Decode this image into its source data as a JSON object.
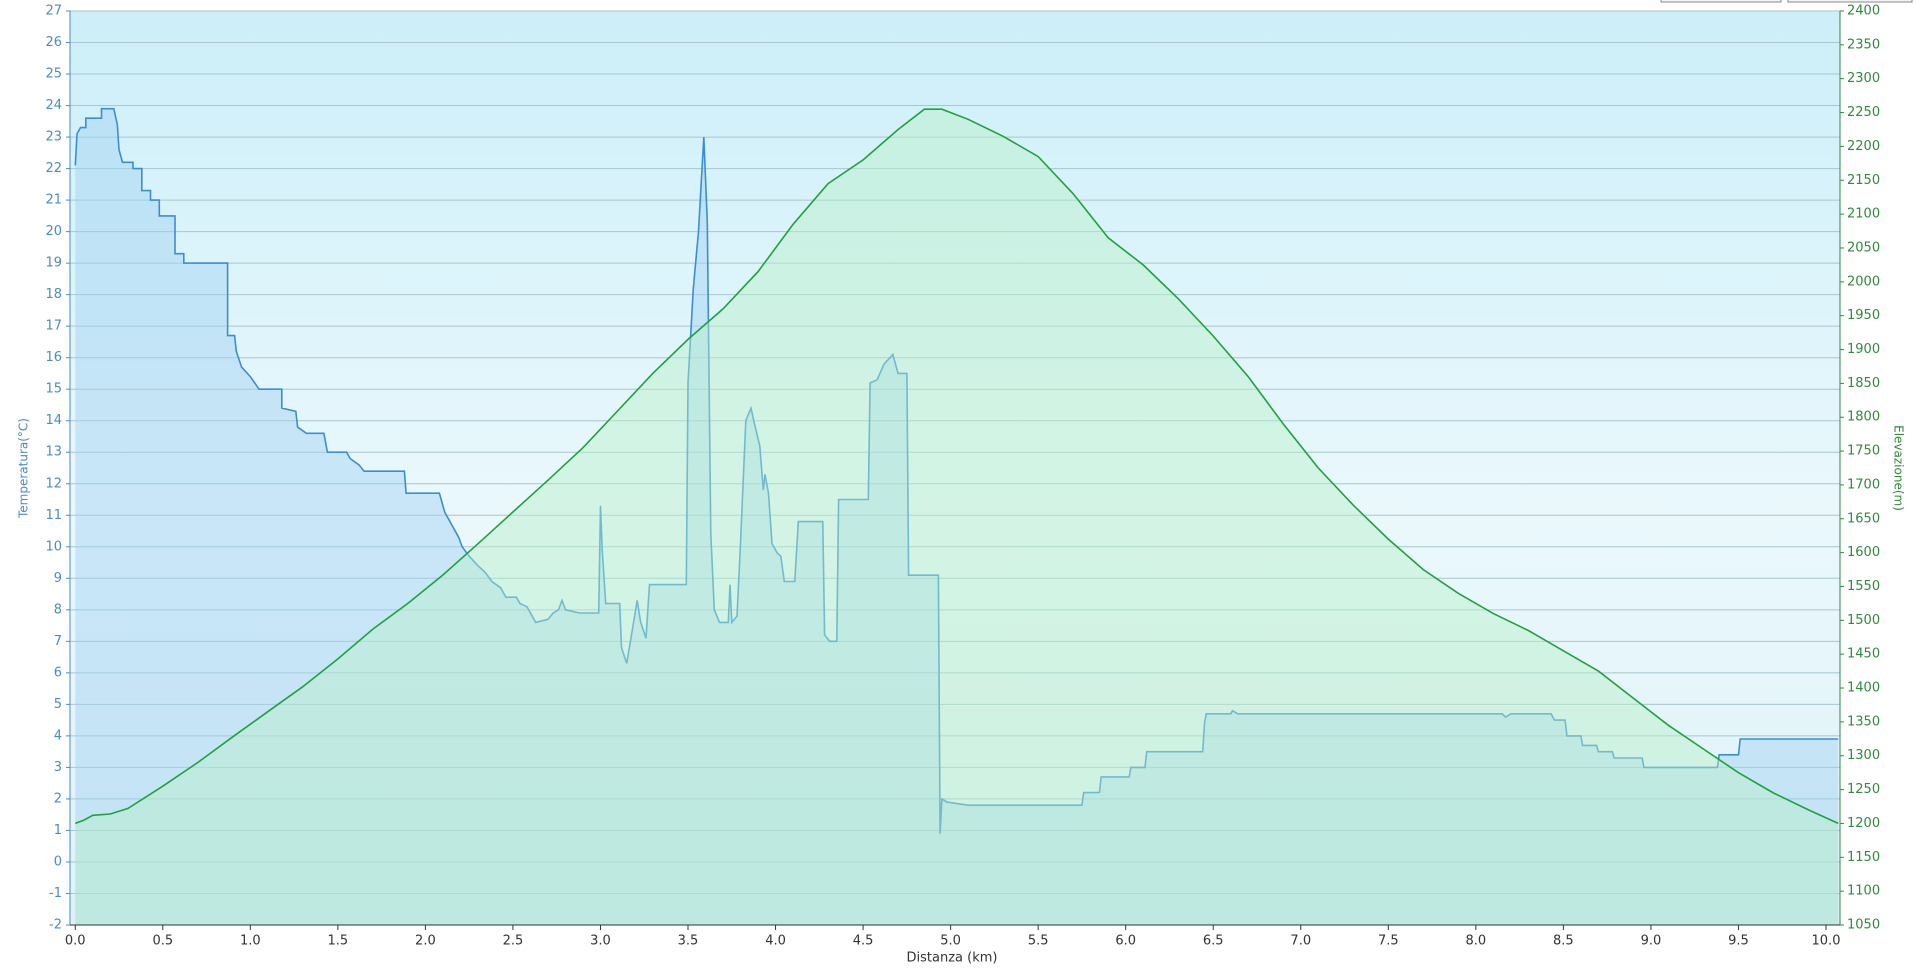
{
  "chart_data": {
    "type": "area",
    "xlabel": "Distanza  (km)",
    "ylabel": "Temperatura(°C)",
    "y2label": "Elevazione(m)",
    "xlim": [
      -0.03,
      10.08
    ],
    "ylim": [
      -2,
      27
    ],
    "y2lim": [
      1050,
      2400
    ],
    "grid": true,
    "xticks": [
      {
        "value": 0,
        "label": "0.0"
      },
      0.5,
      {
        "value": 1,
        "label": "1.0"
      },
      1.5,
      {
        "value": 2,
        "label": "2.0"
      },
      2.5,
      {
        "value": 3,
        "label": "3.0"
      },
      3.5,
      {
        "value": 4,
        "label": "4.0"
      },
      4.5,
      {
        "value": 5,
        "label": "5.0"
      },
      5.5,
      {
        "value": 6,
        "label": "6.0"
      },
      6.5,
      {
        "value": 7,
        "label": "7.0"
      },
      7.5,
      {
        "value": 8,
        "label": "8.0"
      },
      8.5,
      {
        "value": 9,
        "label": "9.0"
      },
      9.5,
      {
        "value": 10,
        "label": "10.0"
      }
    ],
    "yticks": [
      -2,
      -1,
      0,
      1,
      2,
      3,
      4,
      5,
      6,
      7,
      8,
      9,
      10,
      11,
      12,
      13,
      14,
      15,
      16,
      17,
      18,
      19,
      20,
      21,
      22,
      23,
      24,
      25,
      26,
      27
    ],
    "y2ticks": [
      1050,
      1100,
      1150,
      1200,
      1250,
      1300,
      1350,
      1400,
      1450,
      1500,
      1550,
      1600,
      1650,
      1700,
      1750,
      1800,
      1850,
      1900,
      1950,
      2000,
      2050,
      2100,
      2150,
      2200,
      2250,
      2300,
      2350,
      2400
    ],
    "series": [
      {
        "color": "#3a8fd3",
        "fill": "#9fd0f2",
        "x": [
          0,
          0.01,
          0.03,
          0.06,
          0.06,
          0.15,
          0.15,
          0.22,
          0.24,
          0.25,
          0.27,
          0.33,
          0.33,
          0.38,
          0.38,
          0.43,
          0.43,
          0.48,
          0.48,
          0.57,
          0.57,
          0.62,
          0.62,
          0.87,
          0.87,
          0.91,
          0.92,
          0.95,
          1.0,
          1.05,
          1.18,
          1.18,
          1.26,
          1.27,
          1.32,
          1.42,
          1.44,
          1.55,
          1.57,
          1.62,
          1.65,
          1.88,
          1.89,
          2.08,
          2.11,
          2.15,
          2.19,
          2.21,
          2.25,
          2.3,
          2.34,
          2.38,
          2.43,
          2.46,
          2.52,
          2.54,
          2.58,
          2.61,
          2.63,
          2.7,
          2.73,
          2.76,
          2.78,
          2.8,
          2.88,
          2.99,
          3.0,
          3.01,
          3.03,
          3.11,
          3.12,
          3.15,
          3.18,
          3.21,
          3.23,
          3.26,
          3.28,
          3.49,
          3.5,
          3.53,
          3.56,
          3.59,
          3.61,
          3.63,
          3.65,
          3.68,
          3.73,
          3.74,
          3.75,
          3.78,
          3.8,
          3.83,
          3.86,
          3.88,
          3.91,
          3.93,
          3.94,
          3.96,
          3.98,
          4.01,
          4.03,
          4.05,
          4.11,
          4.13,
          4.27,
          4.28,
          4.31,
          4.35,
          4.36,
          4.53,
          4.54,
          4.58,
          4.62,
          4.67,
          4.7,
          4.75,
          4.76,
          4.93,
          4.94,
          4.95,
          4.98,
          5.1,
          5.75,
          5.76,
          5.85,
          5.86,
          6.02,
          6.03,
          6.11,
          6.12,
          6.44,
          6.45,
          6.46,
          6.6,
          6.61,
          6.64,
          8.15,
          8.17,
          8.2,
          8.43,
          8.45,
          8.51,
          8.52,
          8.6,
          8.61,
          8.69,
          8.7,
          8.78,
          8.79,
          8.95,
          8.96,
          9.38,
          9.39,
          9.5,
          9.51,
          10.07
        ],
        "values": [
          22.1,
          23.1,
          23.3,
          23.3,
          23.6,
          23.6,
          23.9,
          23.9,
          23.4,
          22.6,
          22.2,
          22.2,
          22.0,
          22.0,
          21.3,
          21.3,
          21.0,
          21.0,
          20.5,
          20.5,
          19.3,
          19.3,
          19.0,
          19.0,
          16.7,
          16.7,
          16.2,
          15.7,
          15.4,
          15.0,
          15.0,
          14.4,
          14.3,
          13.8,
          13.6,
          13.6,
          13.0,
          13.0,
          12.8,
          12.6,
          12.4,
          12.4,
          11.7,
          11.7,
          11.1,
          10.7,
          10.3,
          10.0,
          9.7,
          9.4,
          9.2,
          8.9,
          8.7,
          8.4,
          8.4,
          8.2,
          8.1,
          7.8,
          7.6,
          7.7,
          7.9,
          8.0,
          8.3,
          8.0,
          7.9,
          7.9,
          11.3,
          9.9,
          8.2,
          8.2,
          6.8,
          6.3,
          7.3,
          8.3,
          7.6,
          7.1,
          8.8,
          8.8,
          15.2,
          18.2,
          20.0,
          23.0,
          20.3,
          10.4,
          8.0,
          7.6,
          7.6,
          8.8,
          7.6,
          7.8,
          10.1,
          14.0,
          14.4,
          13.9,
          13.2,
          11.8,
          12.3,
          11.7,
          10.1,
          9.8,
          9.7,
          8.9,
          8.9,
          10.8,
          10.8,
          7.2,
          7.0,
          7.0,
          11.5,
          11.5,
          15.2,
          15.3,
          15.8,
          16.1,
          15.5,
          15.5,
          9.1,
          9.1,
          0.9,
          2.0,
          1.9,
          1.8,
          1.8,
          2.2,
          2.2,
          2.7,
          2.7,
          3.0,
          3.0,
          3.5,
          3.5,
          4.4,
          4.7,
          4.7,
          4.8,
          4.7,
          4.7,
          4.6,
          4.7,
          4.7,
          4.5,
          4.5,
          4.0,
          4.0,
          3.7,
          3.7,
          3.5,
          3.5,
          3.3,
          3.3,
          3.0,
          3.0,
          3.4,
          3.4,
          3.9,
          3.9
        ]
      },
      {
        "color": "#1ea33b",
        "fill": "#b8f0c8",
        "axis": "y2",
        "x": [
          0,
          0.05,
          0.1,
          0.2,
          0.3,
          0.5,
          0.7,
          0.9,
          1.1,
          1.3,
          1.5,
          1.7,
          1.9,
          2.1,
          2.3,
          2.5,
          2.7,
          2.9,
          3.1,
          3.3,
          3.5,
          3.7,
          3.9,
          4.1,
          4.3,
          4.5,
          4.7,
          4.85,
          4.95,
          5.1,
          5.3,
          5.5,
          5.7,
          5.9,
          6.1,
          6.3,
          6.5,
          6.7,
          6.9,
          7.1,
          7.3,
          7.5,
          7.7,
          7.9,
          8.1,
          8.3,
          8.5,
          8.7,
          8.9,
          9.1,
          9.3,
          9.5,
          9.7,
          9.9,
          10.07
        ],
        "values": [
          1200,
          1205,
          1212,
          1214,
          1222,
          1255,
          1290,
          1328,
          1365,
          1402,
          1443,
          1487,
          1525,
          1567,
          1613,
          1660,
          1707,
          1755,
          1810,
          1865,
          1915,
          1960,
          2015,
          2085,
          2145,
          2180,
          2225,
          2255,
          2255,
          2240,
          2215,
          2185,
          2130,
          2065,
          2025,
          1975,
          1920,
          1860,
          1790,
          1725,
          1670,
          1620,
          1575,
          1540,
          1510,
          1485,
          1455,
          1425,
          1385,
          1345,
          1310,
          1275,
          1245,
          1220,
          1200
        ]
      }
    ]
  }
}
